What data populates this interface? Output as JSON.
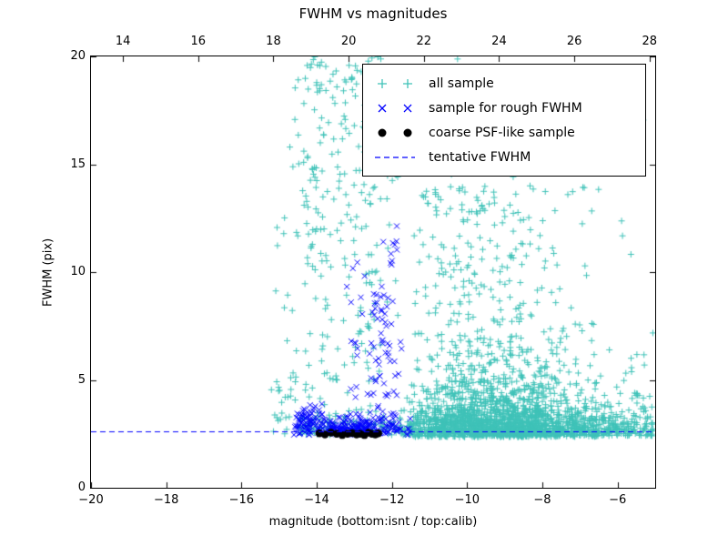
{
  "title": "FWHM vs magnitudes",
  "xlabel": "magnitude (bottom:isnt / top:calib)",
  "ylabel": "FWHM (pix)",
  "axes": {
    "x_bottom": {
      "min": -20,
      "max": -5,
      "tick_values": [
        -20,
        -18,
        -16,
        -14,
        -12,
        -10,
        -8,
        -6
      ],
      "tick_labels": [
        "−20",
        "−18",
        "−16",
        "−14",
        "−12",
        "−10",
        "−8",
        "−6"
      ]
    },
    "x_top": {
      "min": 13.15,
      "max": 28.15,
      "tick_values": [
        14,
        16,
        18,
        20,
        22,
        24,
        26,
        28
      ],
      "tick_labels": [
        "14",
        "16",
        "18",
        "20",
        "22",
        "24",
        "26",
        "28"
      ]
    },
    "y": {
      "min": 0,
      "max": 20,
      "tick_values": [
        0,
        5,
        10,
        15,
        20
      ],
      "tick_labels": [
        "0",
        "5",
        "10",
        "15",
        "20"
      ]
    }
  },
  "legend": {
    "entries": [
      {
        "label": "all sample"
      },
      {
        "label": "sample for rough FWHM"
      },
      {
        "label": "coarse PSF-like sample"
      },
      {
        "label": "tentative FWHM"
      }
    ]
  },
  "chart_data": {
    "type": "scatter",
    "seed": 42,
    "tentative_fwhm_pix": 2.62,
    "series": [
      {
        "name": "all sample",
        "marker": "plus",
        "color": "#3fc2b8",
        "clusters": [
          {
            "n": 1500,
            "x": {
              "d": "norm",
              "mu": -9.2,
              "sd": 1.35,
              "min": -11.6,
              "max": -5.05
            },
            "y": {
              "d": "exp",
              "base": 2.35,
              "scale": 1.05,
              "max": 13.5
            }
          },
          {
            "n": 600,
            "x": {
              "d": "unif",
              "min": -11.8,
              "max": -5.05
            },
            "y": {
              "d": "hnorm",
              "base": 2.4,
              "sd": 0.55,
              "max": 5
            }
          },
          {
            "n": 280,
            "x": {
              "d": "norm",
              "mu": -9.3,
              "sd": 1.3,
              "min": -11.5,
              "max": -5.1
            },
            "y": {
              "d": "unif",
              "min": 4,
              "max": 14
            }
          },
          {
            "n": 160,
            "x": {
              "d": "norm",
              "mu": -13.9,
              "sd": 0.45,
              "min": -15.2,
              "max": -12.9
            },
            "y": {
              "d": "unif",
              "min": 2.3,
              "max": 20
            }
          },
          {
            "n": 110,
            "x": {
              "d": "norm",
              "mu": -12.6,
              "sd": 0.35,
              "min": -13.3,
              "max": -11.7
            },
            "y": {
              "d": "unif",
              "min": 2.5,
              "max": 20
            }
          },
          {
            "n": 120,
            "x": {
              "d": "unif",
              "min": -14.6,
              "max": -11.8
            },
            "y": {
              "d": "hnorm",
              "base": 2.45,
              "sd": 0.4,
              "max": 4.2
            }
          },
          {
            "n": 70,
            "x": {
              "d": "unif",
              "min": -14.9,
              "max": -5.2
            },
            "y": {
              "d": "unif",
              "min": 13.5,
              "max": 20
            }
          },
          {
            "n": 20,
            "x": {
              "d": "unif",
              "min": -15.3,
              "max": -14.5
            },
            "y": {
              "d": "unif",
              "min": 2.5,
              "max": 5
            }
          },
          {
            "n": 18,
            "x": {
              "d": "unif",
              "min": -5.9,
              "max": -5.05
            },
            "y": {
              "d": "unif",
              "min": 3.5,
              "max": 7.5
            }
          }
        ]
      },
      {
        "name": "sample for rough FWHM",
        "marker": "x",
        "color": "#0000ff",
        "clusters": [
          {
            "n": 270,
            "x": {
              "d": "norm",
              "mu": -13.2,
              "sd": 0.85,
              "min": -14.75,
              "max": -11.3
            },
            "y": {
              "d": "hnorm",
              "base": 2.45,
              "sd": 0.4,
              "max": 4.6
            }
          },
          {
            "n": 45,
            "x": {
              "d": "norm",
              "mu": -14.25,
              "sd": 0.18,
              "min": -14.7,
              "max": -13.85
            },
            "y": {
              "d": "norm",
              "mu": 3.2,
              "sd": 0.3,
              "min": 2.6,
              "max": 4
            }
          },
          {
            "n": 45,
            "x": {
              "d": "norm",
              "mu": -12.05,
              "sd": 0.15,
              "min": -12.5,
              "max": -11.6
            },
            "y": {
              "d": "unif",
              "min": 3,
              "max": 12.3
            }
          },
          {
            "n": 30,
            "x": {
              "d": "norm",
              "mu": -12.45,
              "sd": 0.12,
              "min": -12.8,
              "max": -12.1
            },
            "y": {
              "d": "unif",
              "min": 3,
              "max": 9
            }
          },
          {
            "n": 15,
            "x": {
              "d": "norm",
              "mu": -12.95,
              "sd": 0.1,
              "min": -13.25,
              "max": -12.65
            },
            "y": {
              "d": "unif",
              "min": 4,
              "max": 10.6
            }
          }
        ]
      },
      {
        "name": "coarse PSF-like sample",
        "marker": "circle",
        "color": "#000000",
        "points": {
          "x": [
            -13.93,
            -13.78,
            -13.62,
            -13.47,
            -13.32,
            -13.18,
            -13.05,
            -12.94,
            -12.84,
            -12.73,
            -12.62,
            -12.53,
            -12.44,
            -12.36
          ],
          "y": [
            2.52,
            2.47,
            2.55,
            2.5,
            2.44,
            2.5,
            2.53,
            2.47,
            2.5,
            2.44,
            2.55,
            2.5,
            2.47,
            2.52
          ]
        }
      },
      {
        "name": "tentative FWHM",
        "kind": "hline",
        "style": "dashed",
        "color": "#0000ff",
        "y": 2.62
      }
    ]
  }
}
